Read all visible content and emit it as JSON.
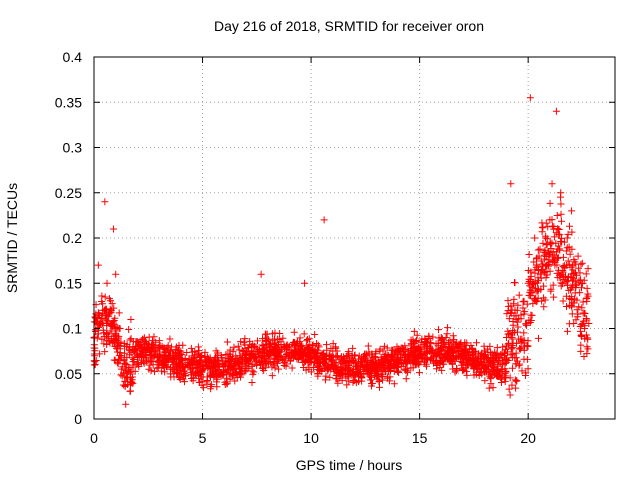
{
  "chart_data": {
    "type": "scatter",
    "title": "Day 216 of 2018, SRMTID for receiver oron",
    "xlabel": "GPS time / hours",
    "ylabel": "SRMTID / TECUs",
    "xlim": [
      0,
      24
    ],
    "ylim": [
      0,
      0.4
    ],
    "x_ticks": [
      0,
      5,
      10,
      15,
      20
    ],
    "x_tick_labels": [
      "0",
      "5",
      "10",
      "15",
      "20"
    ],
    "y_ticks": [
      0,
      0.05,
      0.1,
      0.15,
      0.2,
      0.25,
      0.3,
      0.35,
      0.4
    ],
    "y_tick_labels": [
      "0",
      "0.05",
      "0.1",
      "0.15",
      "0.2",
      "0.25",
      "0.3",
      "0.35",
      "0.4"
    ],
    "grid": true,
    "marker": "+",
    "color": "#ff0000",
    "points_note": "dense cloud of ~2800 samples; representative envelope listed",
    "series": [
      {
        "name": "SRMTID",
        "x": [
          0.0,
          0.2,
          0.4,
          0.5,
          0.6,
          0.8,
          0.9,
          1.0,
          1.2,
          1.5,
          1.7,
          2.0,
          2.5,
          3.0,
          3.5,
          4.0,
          4.5,
          5.0,
          5.5,
          6.0,
          6.5,
          7.0,
          7.5,
          7.7,
          8.0,
          8.5,
          9.0,
          9.5,
          9.7,
          10.0,
          10.5,
          10.6,
          11.0,
          11.5,
          12.0,
          12.5,
          13.0,
          13.5,
          14.0,
          14.5,
          15.0,
          15.3,
          15.5,
          16.0,
          16.5,
          17.0,
          17.5,
          18.0,
          18.5,
          19.0,
          19.2,
          19.5,
          19.8,
          20.0,
          20.1,
          20.3,
          20.5,
          20.8,
          21.0,
          21.1,
          21.3,
          21.5,
          21.8,
          22.0,
          22.3,
          22.5,
          22.7
        ],
        "y": [
          0.09,
          0.17,
          0.12,
          0.24,
          0.15,
          0.12,
          0.21,
          0.16,
          0.1,
          0.08,
          0.11,
          0.07,
          0.065,
          0.06,
          0.07,
          0.075,
          0.065,
          0.055,
          0.05,
          0.06,
          0.055,
          0.07,
          0.065,
          0.16,
          0.075,
          0.07,
          0.08,
          0.07,
          0.15,
          0.075,
          0.07,
          0.22,
          0.075,
          0.065,
          0.07,
          0.065,
          0.06,
          0.07,
          0.075,
          0.07,
          0.07,
          0.08,
          0.065,
          0.09,
          0.08,
          0.08,
          0.075,
          0.075,
          0.07,
          0.09,
          0.26,
          0.12,
          0.13,
          0.15,
          0.355,
          0.2,
          0.18,
          0.2,
          0.22,
          0.26,
          0.34,
          0.25,
          0.2,
          0.23,
          0.18,
          0.15,
          0.13
        ]
      }
    ]
  }
}
